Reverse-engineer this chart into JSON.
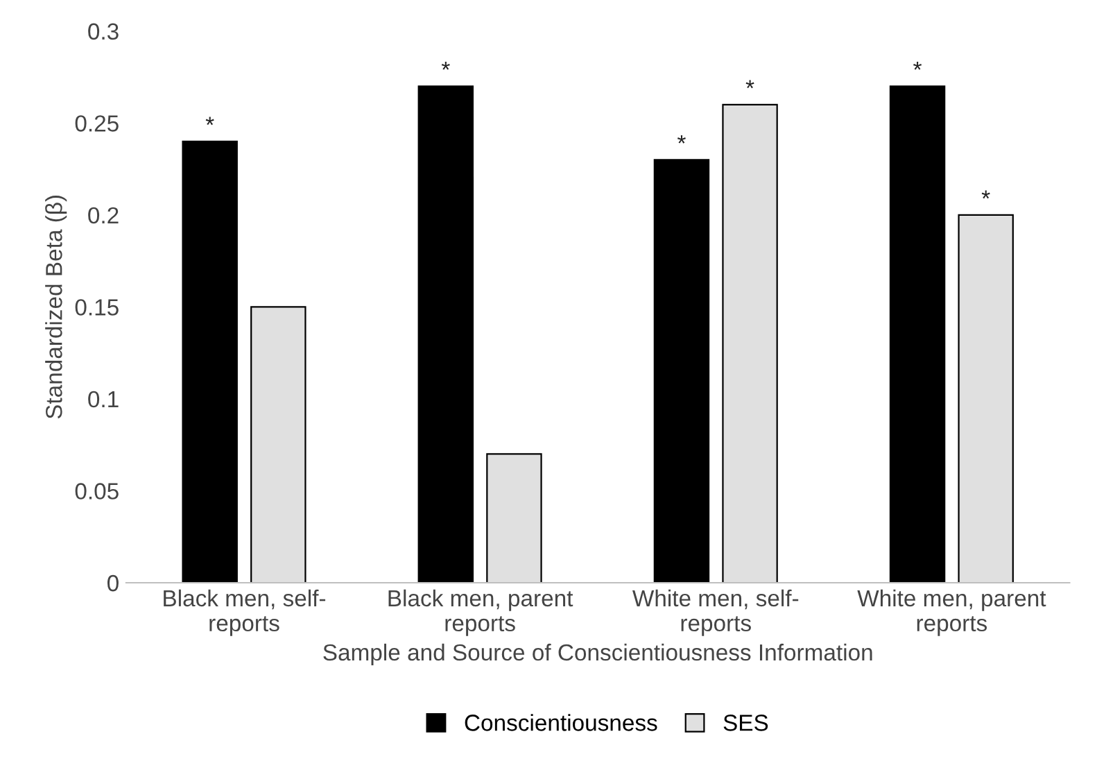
{
  "chart_data": {
    "type": "bar",
    "categories": [
      "Black men, self-\nreports",
      "Black men, parent\nreports",
      "White men, self-\nreports",
      "White men, parent\nreports"
    ],
    "series": [
      {
        "name": "Conscientiousness",
        "color": "#000000",
        "values": [
          0.24,
          0.27,
          0.23,
          0.27
        ],
        "value_labels": [
          "*",
          "*",
          "*",
          "*"
        ]
      },
      {
        "name": "SES",
        "color": "#e0e0e0",
        "values": [
          0.15,
          0.07,
          0.26,
          0.2
        ],
        "value_labels": [
          null,
          null,
          "*",
          "*"
        ]
      }
    ],
    "xlabel": "Sample and Source of Conscientiousness Information",
    "ylabel": "Standardized Beta (β)",
    "ylim": [
      0,
      0.3
    ],
    "yticks": [
      {
        "value": 0,
        "label": "0"
      },
      0.05,
      0.1,
      0.15,
      0.2,
      0.25,
      0.3
    ],
    "grid": false,
    "legend": "bottom"
  }
}
